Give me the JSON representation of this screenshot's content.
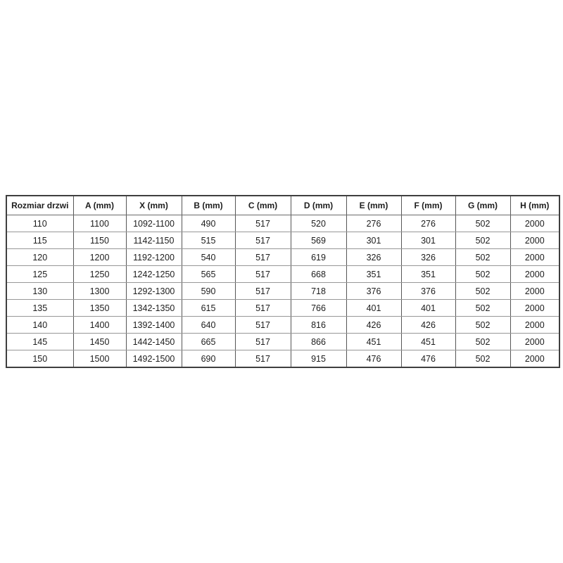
{
  "chart_data": {
    "type": "table",
    "title": "",
    "columns": [
      "Rozmiar drzwi",
      "A (mm)",
      "X (mm)",
      "B (mm)",
      "C (mm)",
      "D (mm)",
      "E (mm)",
      "F (mm)",
      "G (mm)",
      "H (mm)"
    ],
    "rows": [
      [
        "110",
        "1100",
        "1092-1100",
        "490",
        "517",
        "520",
        "276",
        "276",
        "502",
        "2000"
      ],
      [
        "115",
        "1150",
        "1142-1150",
        "515",
        "517",
        "569",
        "301",
        "301",
        "502",
        "2000"
      ],
      [
        "120",
        "1200",
        "1192-1200",
        "540",
        "517",
        "619",
        "326",
        "326",
        "502",
        "2000"
      ],
      [
        "125",
        "1250",
        "1242-1250",
        "565",
        "517",
        "668",
        "351",
        "351",
        "502",
        "2000"
      ],
      [
        "130",
        "1300",
        "1292-1300",
        "590",
        "517",
        "718",
        "376",
        "376",
        "502",
        "2000"
      ],
      [
        "135",
        "1350",
        "1342-1350",
        "615",
        "517",
        "766",
        "401",
        "401",
        "502",
        "2000"
      ],
      [
        "140",
        "1400",
        "1392-1400",
        "640",
        "517",
        "816",
        "426",
        "426",
        "502",
        "2000"
      ],
      [
        "145",
        "1450",
        "1442-1450",
        "665",
        "517",
        "866",
        "451",
        "451",
        "502",
        "2000"
      ],
      [
        "150",
        "1500",
        "1492-1500",
        "690",
        "517",
        "915",
        "476",
        "476",
        "502",
        "2000"
      ]
    ]
  },
  "colors": {
    "background": "#ffffff",
    "text": "#1d1d1d",
    "border_outer": "#3f3f3f",
    "border_vertical": "#565656",
    "border_horizontal": "#979797"
  }
}
